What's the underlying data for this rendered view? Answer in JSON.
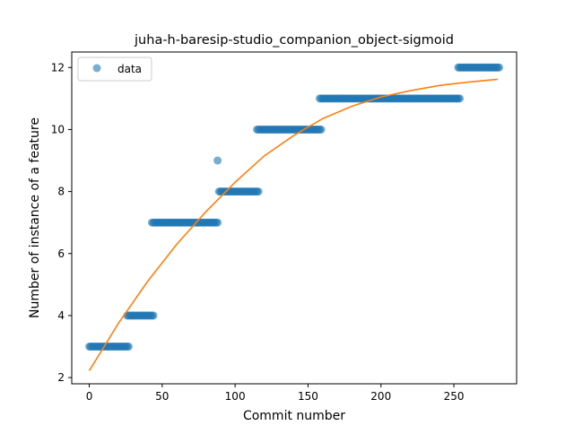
{
  "chart_data": {
    "type": "scatter",
    "title": "juha-h-baresip-studio_companion_object-sigmoid",
    "xlabel": "Commit number",
    "ylabel": "Number of instance of a feature",
    "xlim": [
      -12,
      293
    ],
    "ylim": [
      1.8,
      12.5
    ],
    "xticks": [
      0,
      50,
      100,
      150,
      200,
      250
    ],
    "yticks": [
      2,
      4,
      6,
      8,
      10,
      12
    ],
    "grid": false,
    "legend": {
      "position": "top-left",
      "entries": [
        "data"
      ]
    },
    "colors": {
      "data": "#1f77b4",
      "fit": "#ff7f0e"
    },
    "series": [
      {
        "name": "data",
        "kind": "scatter",
        "segments": [
          {
            "x_start": 0,
            "x_end": 27,
            "y": 3
          },
          {
            "x_start": 26,
            "x_end": 44,
            "y": 4
          },
          {
            "x_start": 43,
            "x_end": 88,
            "y": 7
          },
          {
            "x_start": 88,
            "x_end": 88,
            "y": 9
          },
          {
            "x_start": 89,
            "x_end": 116,
            "y": 8
          },
          {
            "x_start": 115,
            "x_end": 159,
            "y": 10
          },
          {
            "x_start": 158,
            "x_end": 254,
            "y": 11
          },
          {
            "x_start": 253,
            "x_end": 281,
            "y": 12
          }
        ]
      },
      {
        "kind": "line",
        "x": [
          0,
          20,
          40,
          60,
          80,
          100,
          120,
          140,
          160,
          180,
          200,
          220,
          240,
          260,
          280
        ],
        "y": [
          2.22,
          3.75,
          5.1,
          6.3,
          7.35,
          8.3,
          9.15,
          9.8,
          10.35,
          10.75,
          11.05,
          11.25,
          11.42,
          11.53,
          11.62
        ]
      }
    ]
  }
}
